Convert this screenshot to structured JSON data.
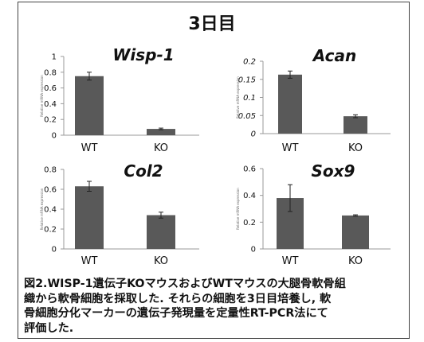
{
  "title": "3日目",
  "chart_data": [
    {
      "type": "bar",
      "title": "Wisp-1",
      "title_style": "italic",
      "ylabel": "Relative mRNA expression",
      "categories": [
        "WT",
        "KO"
      ],
      "values": [
        0.75,
        0.08
      ],
      "errors": [
        0.05,
        0.01
      ],
      "ylim": [
        0,
        1
      ],
      "yticks": [
        "0",
        "0.2",
        "0.4",
        "0.6",
        "0.8",
        "1"
      ],
      "grid": false
    },
    {
      "type": "bar",
      "title": "Acan",
      "title_style": "italic",
      "ylabel": "Relative mRNA expression",
      "categories": [
        "WT",
        "KO"
      ],
      "values": [
        0.163,
        0.048
      ],
      "errors": [
        0.01,
        0.004
      ],
      "ylim": [
        0,
        0.2
      ],
      "yticks": [
        "0",
        "0.05",
        "0.1",
        "0.15",
        "0.2"
      ],
      "grid": false
    },
    {
      "type": "bar",
      "title": "Col2",
      "title_style": "italic",
      "ylabel": "Relative mRNA expression",
      "categories": [
        "WT",
        "KO"
      ],
      "values": [
        0.63,
        0.34
      ],
      "errors": [
        0.05,
        0.03
      ],
      "ylim": [
        0,
        0.8
      ],
      "yticks": [
        "0",
        "0.2",
        "0.4",
        "0.6",
        "0.8"
      ],
      "grid": false
    },
    {
      "type": "bar",
      "title": "Sox9",
      "title_style": "italic",
      "ylabel": "Relative mRNA expression",
      "categories": [
        "WT",
        "KO"
      ],
      "values": [
        0.38,
        0.25
      ],
      "errors": [
        0.1,
        0.005
      ],
      "ylim": [
        0,
        0.6
      ],
      "yticks": [
        "0",
        "0.2",
        "0.4",
        "0.6"
      ],
      "grid": false
    }
  ],
  "colors": {
    "bar": "#595959",
    "axis": "#999999",
    "text": "#111111"
  },
  "caption": [
    "図2.WISP-1遺伝子KOマウスおよびWTマウスの大腿骨軟骨組",
    "織から軟骨細胞を採取した. それらの細胞を3日目培養し, 軟",
    "骨細胞分化マーカーの遺伝子発現量を定量性RT-PCR法にて",
    "評価した."
  ]
}
